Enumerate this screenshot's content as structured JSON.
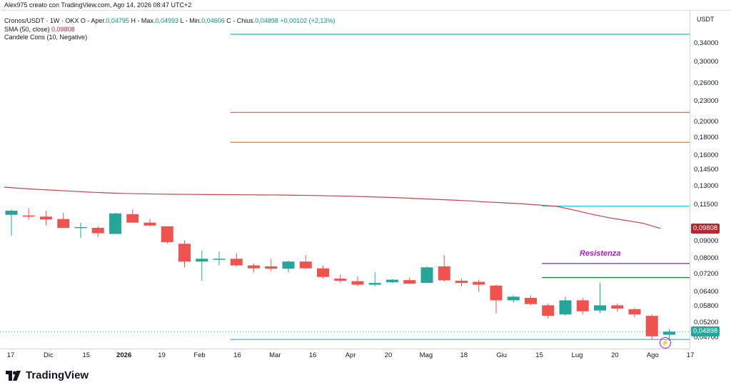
{
  "header": {
    "author_line": "Alex975 creato con TradingView.com, Ago 14, 2026 08:47 UTC+2",
    "ohlc_prefix": "Cronos/USDT · 1W · OKX  O - Aper.",
    "open": "0,04795",
    "high_label": "H - Max.",
    "high": "0,04993",
    "low_label": "L - Min.",
    "low": "0,04606",
    "close_label": "C - Chius.",
    "close": "0,04898",
    "change": "+0,00102 (+2,13%)",
    "sma_label": "SMA (50, close)",
    "sma_value": "0,09808",
    "candle_label": "Candele Cons (10, Negative)"
  },
  "currency": "USDT",
  "annotation": {
    "text": "Resistenza",
    "color": "#9c27b0"
  },
  "price_tags": {
    "sma": {
      "text": "0,09808",
      "color": "#b22833"
    },
    "last": {
      "text": "0,04898",
      "color": "#26a69a"
    }
  },
  "logo": {
    "text": "TradingView"
  },
  "chart_data": {
    "type": "candlestick",
    "y_scale": "log",
    "y_ticks": [
      {
        "value": 0.34,
        "label": "0,34000"
      },
      {
        "value": 0.3,
        "label": "0,30000"
      },
      {
        "value": 0.26,
        "label": "0,26000"
      },
      {
        "value": 0.23,
        "label": "0,23000"
      },
      {
        "value": 0.2,
        "label": "0,20000"
      },
      {
        "value": 0.18,
        "label": "0,18000"
      },
      {
        "value": 0.16,
        "label": "0,16000"
      },
      {
        "value": 0.145,
        "label": "0,14500"
      },
      {
        "value": 0.13,
        "label": "0,13000"
      },
      {
        "value": 0.115,
        "label": "0,11500"
      },
      {
        "value": 0.09,
        "label": "0,09000"
      },
      {
        "value": 0.08,
        "label": "0,08000"
      },
      {
        "value": 0.072,
        "label": "0,07200"
      },
      {
        "value": 0.064,
        "label": "0,06400"
      },
      {
        "value": 0.058,
        "label": "0,05800"
      },
      {
        "value": 0.052,
        "label": "0,05200"
      },
      {
        "value": 0.047,
        "label": "0,04700"
      }
    ],
    "x_ticks": [
      {
        "label": "17",
        "bold": false
      },
      {
        "label": "Dic",
        "bold": false
      },
      {
        "label": "15",
        "bold": false
      },
      {
        "label": "2026",
        "bold": true
      },
      {
        "label": "19",
        "bold": false
      },
      {
        "label": "Feb",
        "bold": false
      },
      {
        "label": "16",
        "bold": false
      },
      {
        "label": "Mar",
        "bold": false
      },
      {
        "label": "16",
        "bold": false
      },
      {
        "label": "Apr",
        "bold": false
      },
      {
        "label": "20",
        "bold": false
      },
      {
        "label": "Mag",
        "bold": false
      },
      {
        "label": "18",
        "bold": false
      },
      {
        "label": "Giu",
        "bold": false
      },
      {
        "label": "15",
        "bold": false
      },
      {
        "label": "Lug",
        "bold": false
      },
      {
        "label": "20",
        "bold": false
      },
      {
        "label": "Ago",
        "bold": false
      },
      {
        "label": "17",
        "bold": false
      }
    ],
    "candles": [
      {
        "o": 0.1075,
        "h": 0.1115,
        "l": 0.0935,
        "c": 0.1105
      },
      {
        "o": 0.107,
        "h": 0.1125,
        "l": 0.104,
        "c": 0.1068
      },
      {
        "o": 0.1062,
        "h": 0.1105,
        "l": 0.1,
        "c": 0.1042
      },
      {
        "o": 0.1045,
        "h": 0.109,
        "l": 0.0985,
        "c": 0.0985
      },
      {
        "o": 0.099,
        "h": 0.102,
        "l": 0.092,
        "c": 0.099
      },
      {
        "o": 0.0985,
        "h": 0.0995,
        "l": 0.0925,
        "c": 0.095
      },
      {
        "o": 0.0945,
        "h": 0.109,
        "l": 0.0945,
        "c": 0.1085
      },
      {
        "o": 0.108,
        "h": 0.1115,
        "l": 0.102,
        "c": 0.102
      },
      {
        "o": 0.102,
        "h": 0.1045,
        "l": 0.0995,
        "c": 0.1
      },
      {
        "o": 0.0995,
        "h": 0.0995,
        "l": 0.0885,
        "c": 0.0895
      },
      {
        "o": 0.0885,
        "h": 0.0905,
        "l": 0.0755,
        "c": 0.0785
      },
      {
        "o": 0.0785,
        "h": 0.0845,
        "l": 0.069,
        "c": 0.08
      },
      {
        "o": 0.0795,
        "h": 0.084,
        "l": 0.0765,
        "c": 0.08
      },
      {
        "o": 0.08,
        "h": 0.083,
        "l": 0.076,
        "c": 0.0765
      },
      {
        "o": 0.0765,
        "h": 0.0775,
        "l": 0.073,
        "c": 0.075
      },
      {
        "o": 0.076,
        "h": 0.08,
        "l": 0.0735,
        "c": 0.0748
      },
      {
        "o": 0.0748,
        "h": 0.079,
        "l": 0.073,
        "c": 0.0785
      },
      {
        "o": 0.0785,
        "h": 0.082,
        "l": 0.0745,
        "c": 0.075
      },
      {
        "o": 0.075,
        "h": 0.0765,
        "l": 0.07,
        "c": 0.0708
      },
      {
        "o": 0.07,
        "h": 0.072,
        "l": 0.068,
        "c": 0.069
      },
      {
        "o": 0.0688,
        "h": 0.071,
        "l": 0.0665,
        "c": 0.0672
      },
      {
        "o": 0.0672,
        "h": 0.073,
        "l": 0.0665,
        "c": 0.068
      },
      {
        "o": 0.0683,
        "h": 0.0697,
        "l": 0.068,
        "c": 0.0695
      },
      {
        "o": 0.0693,
        "h": 0.0705,
        "l": 0.0675,
        "c": 0.0677
      },
      {
        "o": 0.068,
        "h": 0.076,
        "l": 0.068,
        "c": 0.0755
      },
      {
        "o": 0.076,
        "h": 0.082,
        "l": 0.0685,
        "c": 0.0692
      },
      {
        "o": 0.069,
        "h": 0.07,
        "l": 0.0665,
        "c": 0.068
      },
      {
        "o": 0.0685,
        "h": 0.0695,
        "l": 0.064,
        "c": 0.0672
      },
      {
        "o": 0.0668,
        "h": 0.0672,
        "l": 0.0555,
        "c": 0.0605
      },
      {
        "o": 0.0605,
        "h": 0.0625,
        "l": 0.0595,
        "c": 0.062
      },
      {
        "o": 0.0615,
        "h": 0.0625,
        "l": 0.0585,
        "c": 0.059
      },
      {
        "o": 0.0585,
        "h": 0.0592,
        "l": 0.0535,
        "c": 0.0545
      },
      {
        "o": 0.055,
        "h": 0.062,
        "l": 0.0545,
        "c": 0.0605
      },
      {
        "o": 0.0605,
        "h": 0.0615,
        "l": 0.055,
        "c": 0.0562
      },
      {
        "o": 0.0565,
        "h": 0.068,
        "l": 0.0555,
        "c": 0.0585
      },
      {
        "o": 0.0585,
        "h": 0.0592,
        "l": 0.056,
        "c": 0.0572
      },
      {
        "o": 0.057,
        "h": 0.0575,
        "l": 0.054,
        "c": 0.055
      },
      {
        "o": 0.0545,
        "h": 0.055,
        "l": 0.0465,
        "c": 0.0475
      },
      {
        "o": 0.048,
        "h": 0.0499,
        "l": 0.0461,
        "c": 0.049
      }
    ],
    "sma": [
      0.1295,
      0.1285,
      0.1276,
      0.1268,
      0.126,
      0.1252,
      0.1246,
      0.1241,
      0.1238,
      0.1236,
      0.1234,
      0.1233,
      0.1232,
      0.1231,
      0.123,
      0.1229,
      0.1228,
      0.1226,
      0.1224,
      0.1221,
      0.1218,
      0.1214,
      0.121,
      0.1205,
      0.1199,
      0.1193,
      0.1187,
      0.118,
      0.1172,
      0.1165,
      0.1157,
      0.1148,
      0.1138,
      0.111,
      0.108,
      0.1055,
      0.1035,
      0.1015,
      0.0981
    ],
    "horizontal_lines": [
      {
        "value": 0.362,
        "color": "#26c6da",
        "from_candle": 13
      },
      {
        "value": 0.214,
        "color": "#f06070",
        "from_candle": 13
      },
      {
        "value": 0.175,
        "color": "#f57c00",
        "from_candle": 13
      },
      {
        "value": 0.114,
        "color": "#26c6da",
        "from_candle": 31
      },
      {
        "value": 0.0775,
        "color": "#5e35b1",
        "from_candle": 31
      },
      {
        "value": 0.0705,
        "color": "#2e7d32",
        "from_candle": 31
      },
      {
        "value": 0.0465,
        "color": "#26c6da",
        "from_candle": 13
      }
    ],
    "colors": {
      "up": "#26a69a",
      "down": "#ef5350",
      "sma": "#c2454f"
    }
  }
}
